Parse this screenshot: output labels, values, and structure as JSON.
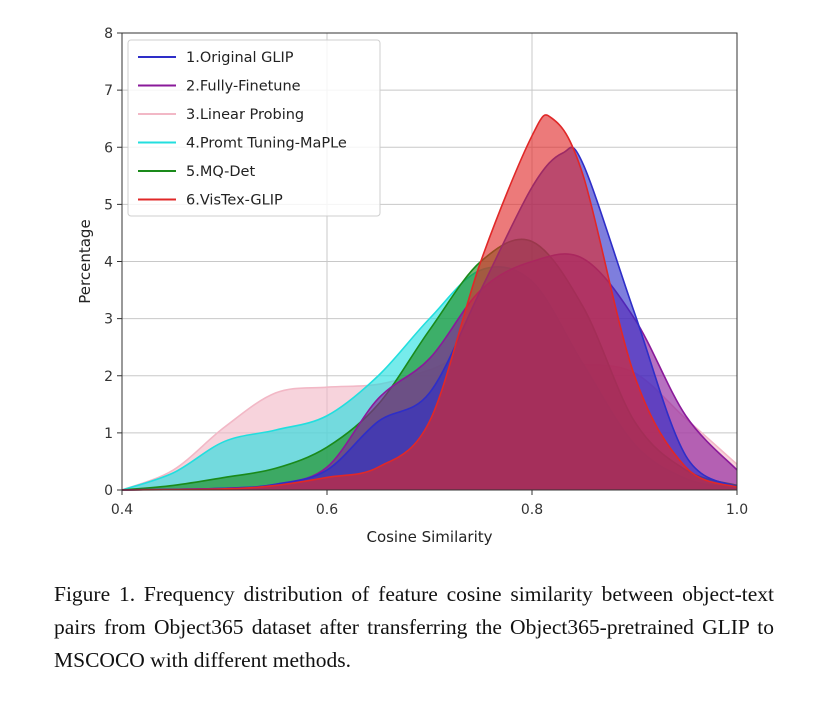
{
  "chart_data": {
    "type": "area",
    "xlabel": "Cosine Similarity",
    "ylabel": "Percentage",
    "xlim": [
      0.4,
      1.0
    ],
    "ylim": [
      0,
      8
    ],
    "xticks": [
      "0.4",
      "0.6",
      "0.8",
      "1.0"
    ],
    "yticks": [
      "0",
      "1",
      "2",
      "3",
      "4",
      "5",
      "6",
      "7",
      "8"
    ],
    "grid": true,
    "legend_position": "top-left",
    "series": [
      {
        "name": "3.Linear Probing",
        "color": "#f2b8c6",
        "x": [
          0.4,
          0.45,
          0.5,
          0.55,
          0.6,
          0.65,
          0.7,
          0.75,
          0.8,
          0.85,
          0.9,
          0.95,
          1.0
        ],
        "y": [
          0,
          0.35,
          1.1,
          1.7,
          1.8,
          1.85,
          2.1,
          2.45,
          2.2,
          2.2,
          2.05,
          1.25,
          0.45
        ]
      },
      {
        "name": "4.Promt Tuning-MaPLe",
        "color": "#22dede",
        "x": [
          0.4,
          0.45,
          0.5,
          0.55,
          0.6,
          0.65,
          0.7,
          0.75,
          0.8,
          0.85,
          0.9,
          0.95,
          1.0
        ],
        "y": [
          0,
          0.3,
          0.85,
          1.05,
          1.3,
          2.0,
          3.0,
          3.85,
          3.65,
          2.2,
          0.8,
          0.2,
          0.02
        ]
      },
      {
        "name": "5.MQ-Det",
        "color": "#1a8a1a",
        "x": [
          0.4,
          0.45,
          0.5,
          0.55,
          0.6,
          0.65,
          0.7,
          0.75,
          0.8,
          0.85,
          0.9,
          0.95,
          1.0
        ],
        "y": [
          0,
          0.08,
          0.22,
          0.38,
          0.75,
          1.5,
          2.8,
          4.0,
          4.35,
          3.2,
          1.2,
          0.35,
          0.08
        ]
      },
      {
        "name": "2.Fully-Finetune",
        "color": "#8a1a9a",
        "x": [
          0.4,
          0.5,
          0.55,
          0.6,
          0.65,
          0.7,
          0.75,
          0.8,
          0.85,
          0.9,
          0.95,
          1.0
        ],
        "y": [
          0,
          0.03,
          0.1,
          0.4,
          1.6,
          2.3,
          3.5,
          4.0,
          4.05,
          3.0,
          1.3,
          0.35
        ]
      },
      {
        "name": "1.Original GLIP",
        "color": "#2e2ec8",
        "x": [
          0.4,
          0.5,
          0.55,
          0.6,
          0.65,
          0.7,
          0.75,
          0.8,
          0.83,
          0.85,
          0.9,
          0.95,
          1.0
        ],
        "y": [
          0,
          0.03,
          0.1,
          0.35,
          1.2,
          1.7,
          3.5,
          5.3,
          5.9,
          5.7,
          3.1,
          0.6,
          0.05
        ]
      },
      {
        "name": "6.VisTex-GLIP",
        "color": "#e02828",
        "x": [
          0.4,
          0.5,
          0.55,
          0.6,
          0.65,
          0.7,
          0.75,
          0.8,
          0.82,
          0.85,
          0.9,
          0.95,
          1.0
        ],
        "y": [
          0,
          0.02,
          0.08,
          0.22,
          0.4,
          1.2,
          4.0,
          6.2,
          6.5,
          5.5,
          2.0,
          0.4,
          0.05
        ]
      }
    ],
    "legend_order": [
      "1.Original GLIP",
      "2.Fully-Finetune",
      "3.Linear Probing",
      "4.Promt Tuning-MaPLe",
      "5.MQ-Det",
      "6.VisTex-GLIP"
    ]
  },
  "caption": "Figure 1. Frequency distribution of feature cosine similarity between object-text pairs from Object365 dataset after transferring the Object365-pretrained GLIP to MSCOCO with different methods."
}
